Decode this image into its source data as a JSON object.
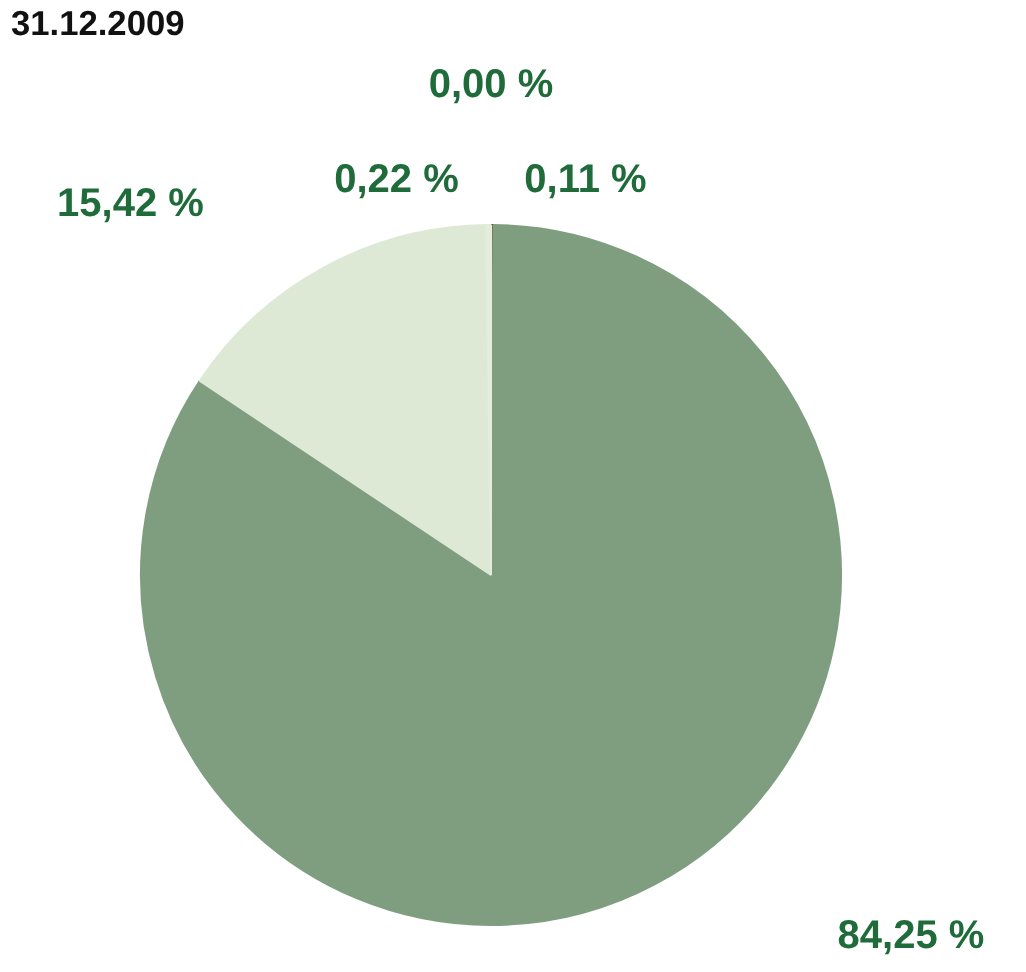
{
  "chart_data": {
    "type": "pie",
    "title": "31.12.2009",
    "categories": [
      null,
      null,
      null,
      null,
      null
    ],
    "values": [
      0.0,
      0.11,
      84.25,
      15.42,
      0.22
    ],
    "colors": [
      "#c8a040",
      "#6b4a1a",
      "#7f9e80",
      "#dde9d5",
      "#e4ecdc"
    ],
    "value_labels": [
      "0,00 %",
      "0,11 %",
      "84,25 %",
      "15,42 %",
      "0,22 %"
    ]
  }
}
